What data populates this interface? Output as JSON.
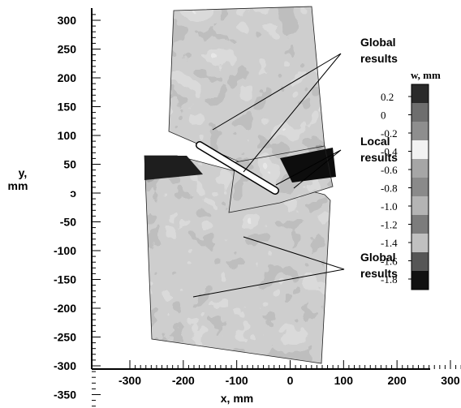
{
  "chart_data": {
    "type": "heatmap",
    "title": "",
    "xlabel": "x, mm",
    "ylabel": "y, mm",
    "ylabel_lines": [
      "y,",
      "mm"
    ],
    "xlim": [
      -300,
      350
    ],
    "ylim": [
      -370,
      310
    ],
    "x_ticks": [
      -300,
      -200,
      -100,
      0,
      100,
      200,
      300
    ],
    "y_ticks": [
      300,
      250,
      200,
      150,
      100,
      50,
      0,
      -50,
      -100,
      -150,
      -200,
      -250,
      -300,
      -350
    ],
    "y_tick_labels": [
      "300",
      "250",
      "200",
      "150",
      "100",
      "50",
      "ɔ",
      "-50",
      "-100",
      "-150",
      "-200",
      "-250",
      "-300",
      "-350"
    ],
    "colorbar": {
      "title": "w, mm",
      "levels": [
        0.2,
        0,
        -0.2,
        -0.4,
        -0.6,
        -0.8,
        -1.0,
        -1.2,
        -1.4,
        -1.6,
        -1.8
      ],
      "labels": [
        "0.2",
        "0",
        "-0.2",
        "-0.4",
        "-0.6",
        "-0.8",
        "-1.0",
        "-1.2",
        "-1.4",
        "-1.6",
        "-1.8"
      ],
      "colors": [
        "#2a2a2a",
        "#6e6e6e",
        "#8e8e8e",
        "#f2f2f2",
        "#a6a6a6",
        "#8a8a8a",
        "#b4b4b4",
        "#7c7c7c",
        "#c0c0c0",
        "#565656",
        "#111111"
      ]
    },
    "annotations": [
      {
        "lines": [
          "Global",
          "results"
        ]
      },
      {
        "lines": [
          "Local",
          "results"
        ]
      },
      {
        "lines": [
          "Global",
          "results"
        ]
      }
    ]
  }
}
